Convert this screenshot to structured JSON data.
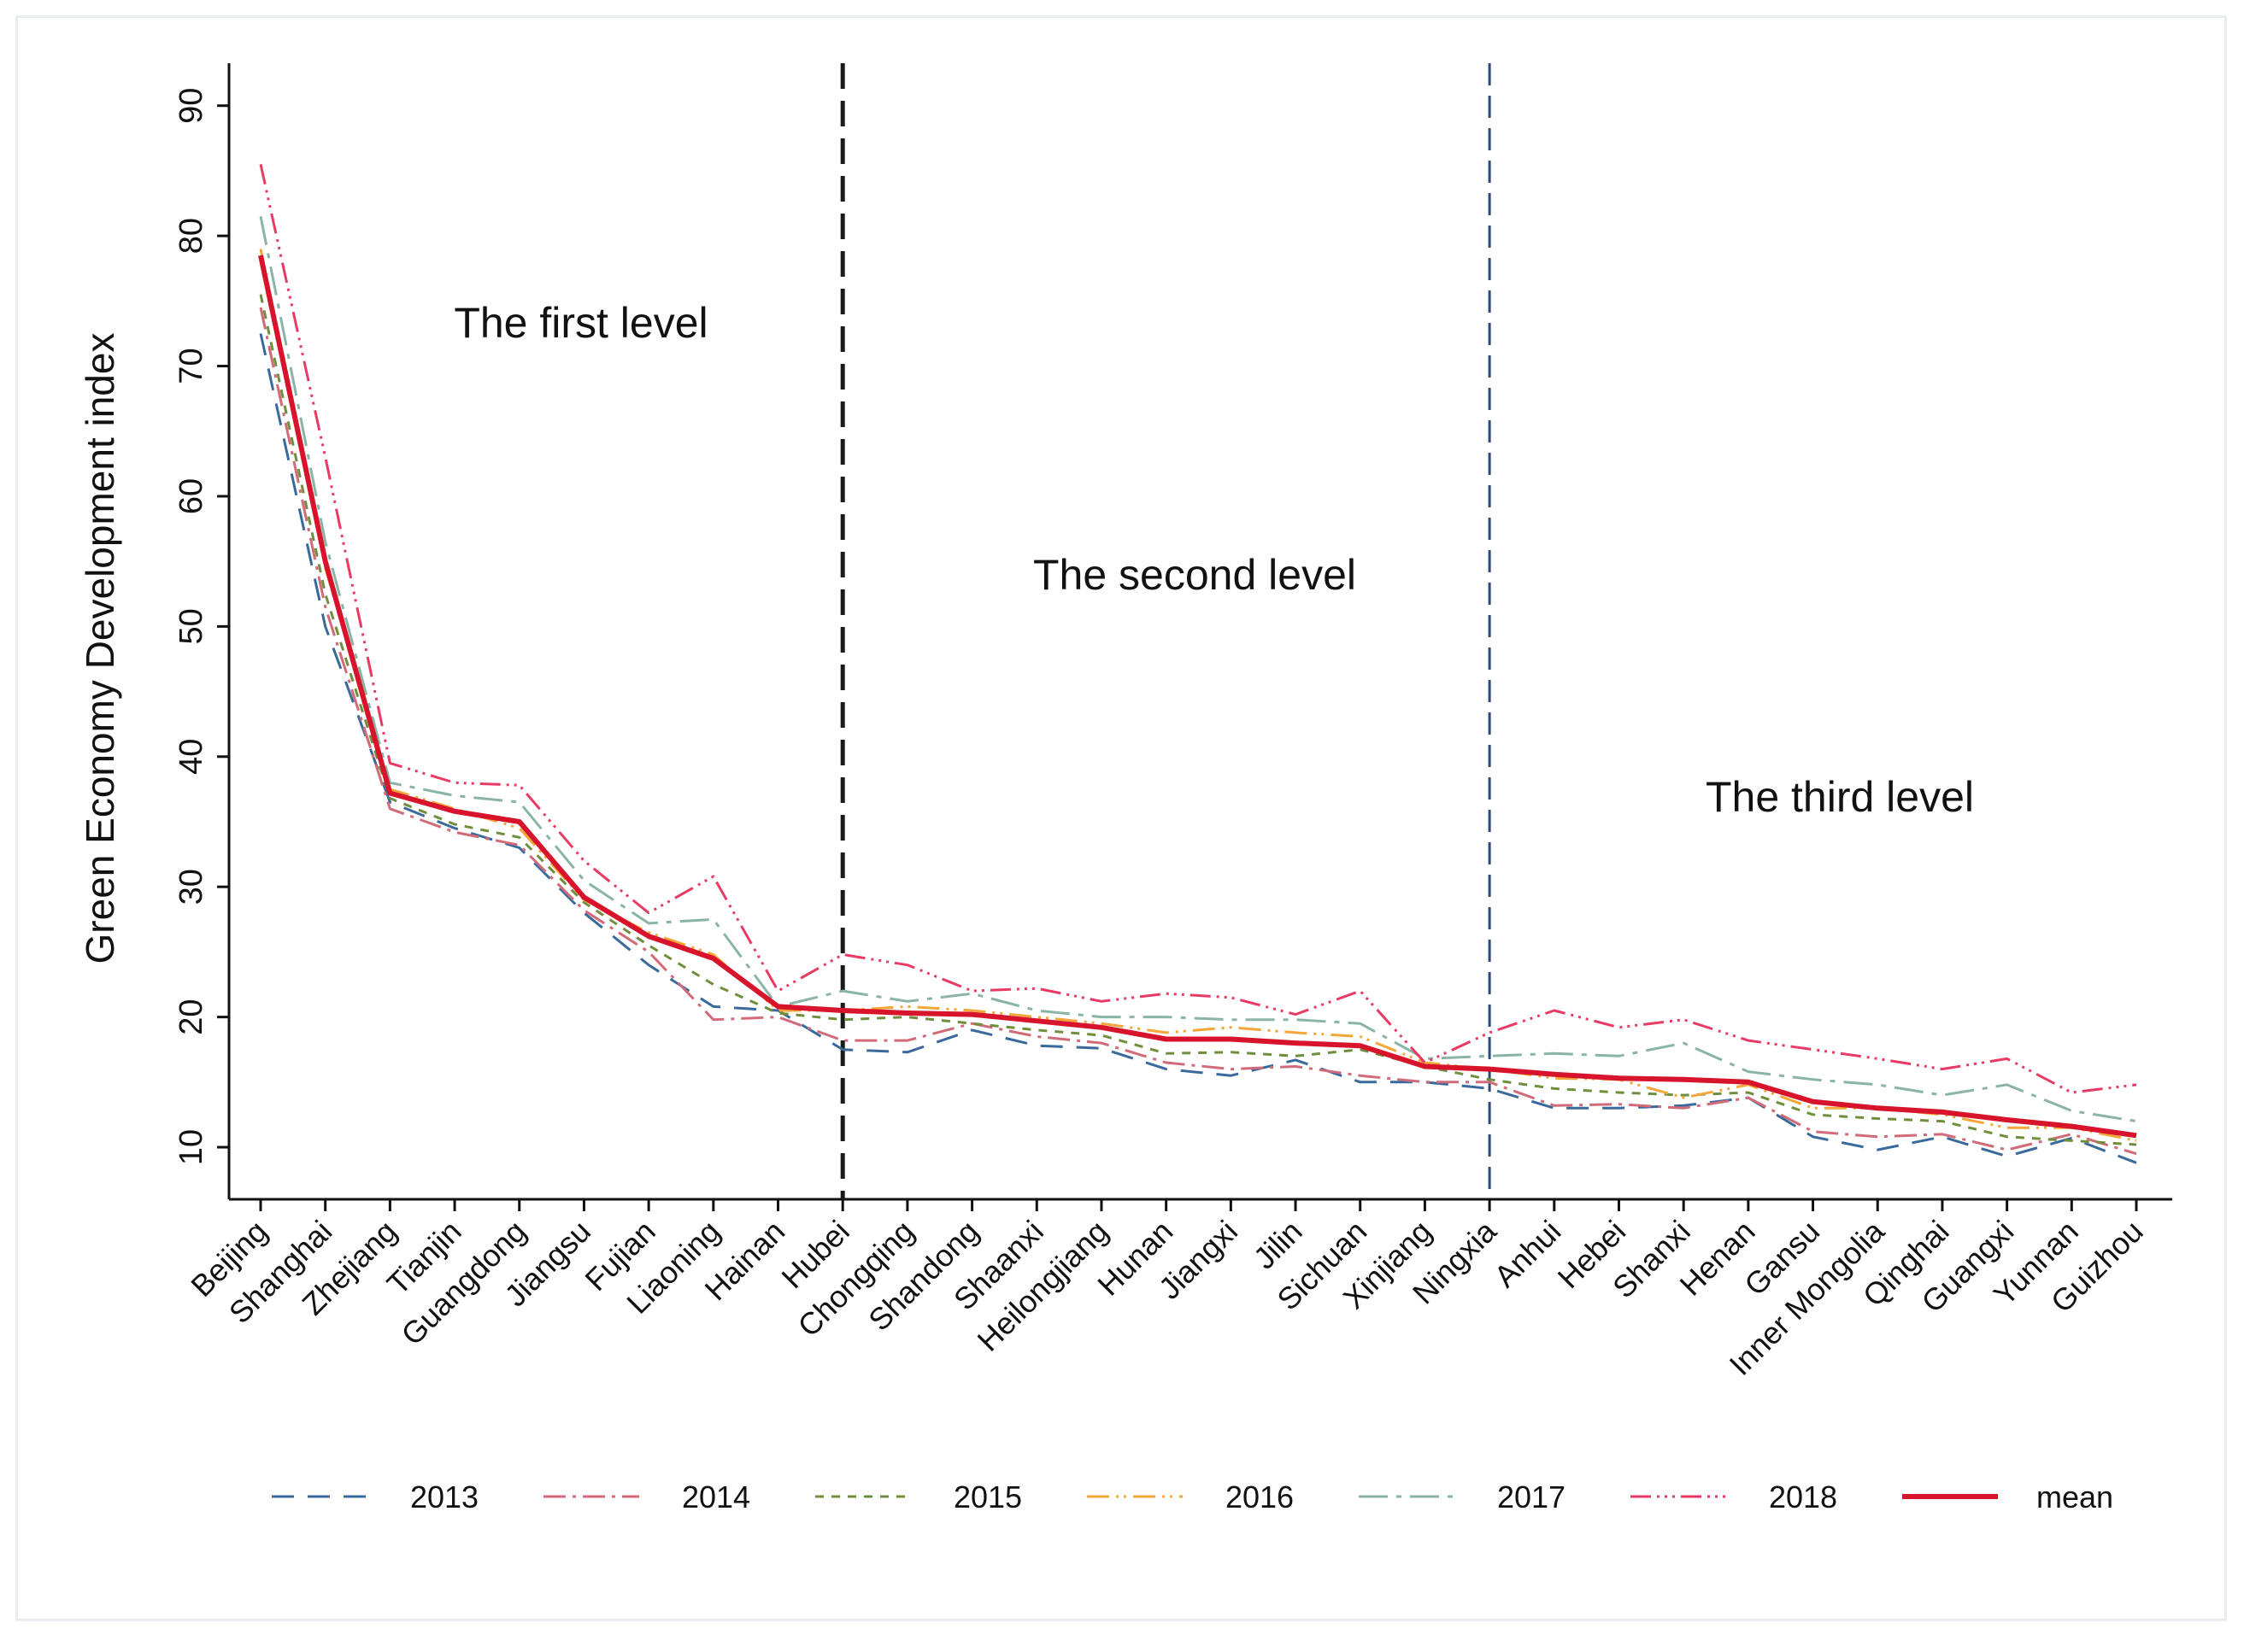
{
  "chart_data": {
    "type": "line",
    "title": "",
    "xlabel": "",
    "ylabel": "Green Economy Development index",
    "ylim": [
      6,
      93
    ],
    "yticks": [
      10,
      20,
      30,
      40,
      50,
      60,
      70,
      80,
      90
    ],
    "grid": false,
    "legend_position": "bottom",
    "categories": [
      "Beijing",
      "Shanghai",
      "Zhejiang",
      "Tianjin",
      "Guangdong",
      "Jiangsu",
      "Fujian",
      "Liaoning",
      "Hainan",
      "Hubei",
      "Chongqing",
      "Shandong",
      "Shaanxi",
      "Heilongjiang",
      "Hunan",
      "Jiangxi",
      "Jilin",
      "Sichuan",
      "Xinjiang",
      "Ningxia",
      "Anhui",
      "Hebei",
      "Shanxi",
      "Henan",
      "Gansu",
      "Inner Mongolia",
      "Qinghai",
      "Guangxi",
      "Yunnan",
      "Guizhou"
    ],
    "series": [
      {
        "name": "2013",
        "color": "#3a6a9c",
        "dash": "26,16",
        "width": 3,
        "values": [
          72.5,
          50.0,
          36.5,
          34.5,
          33.0,
          28.0,
          24.0,
          20.8,
          20.5,
          17.5,
          17.3,
          19.0,
          17.8,
          17.6,
          16.0,
          15.5,
          16.7,
          15.0,
          15.0,
          14.5,
          13.0,
          13.0,
          13.2,
          13.8,
          10.8,
          9.8,
          10.8,
          9.3,
          10.7,
          8.8
        ]
      },
      {
        "name": "2014",
        "color": "#d16b79",
        "dash": "26,8,4,8",
        "width": 3,
        "values": [
          74.5,
          51.5,
          36.0,
          34.2,
          33.2,
          28.2,
          25.0,
          19.8,
          20.0,
          18.2,
          18.2,
          19.5,
          18.5,
          18.0,
          16.5,
          16.0,
          16.2,
          15.5,
          15.0,
          15.0,
          13.2,
          13.3,
          13.0,
          13.8,
          11.2,
          10.8,
          11.0,
          9.8,
          11.0,
          9.5
        ]
      },
      {
        "name": "2015",
        "color": "#6f8f3c",
        "dash": "10,9",
        "width": 3,
        "values": [
          75.5,
          52.5,
          36.8,
          34.8,
          33.8,
          28.8,
          25.5,
          22.5,
          20.3,
          19.8,
          20.0,
          19.5,
          19.0,
          18.6,
          17.2,
          17.3,
          17.0,
          17.5,
          16.2,
          15.2,
          14.5,
          14.2,
          14.0,
          14.2,
          12.5,
          12.2,
          12.0,
          10.8,
          10.5,
          10.2
        ]
      },
      {
        "name": "2016",
        "color": "#f4a739",
        "dash": "26,8,3,6,3,8",
        "width": 3,
        "values": [
          79.0,
          54.5,
          37.5,
          36.0,
          34.5,
          29.0,
          26.5,
          24.8,
          20.5,
          20.5,
          20.8,
          20.5,
          20.0,
          19.5,
          18.8,
          19.2,
          18.8,
          18.5,
          16.5,
          16.0,
          15.3,
          15.2,
          13.8,
          14.8,
          13.0,
          13.0,
          12.5,
          11.5,
          11.5,
          10.5
        ]
      },
      {
        "name": "2017",
        "color": "#8ab5a5",
        "dash": "34,10,6,10",
        "width": 3,
        "values": [
          81.5,
          56.5,
          38.0,
          37.0,
          36.5,
          30.5,
          27.2,
          27.5,
          20.8,
          22.0,
          21.2,
          21.8,
          20.5,
          20.0,
          20.0,
          19.8,
          19.8,
          19.5,
          16.8,
          17.0,
          17.2,
          17.0,
          18.0,
          15.8,
          15.2,
          14.8,
          14.0,
          14.8,
          12.8,
          12.0
        ]
      },
      {
        "name": "2018",
        "color": "#e83a64",
        "dash": "24,7,3,6,3,6,3,7",
        "width": 3,
        "values": [
          85.5,
          63.0,
          39.5,
          38.0,
          37.8,
          32.0,
          28.0,
          30.8,
          22.0,
          24.8,
          24.0,
          22.0,
          22.2,
          21.2,
          21.8,
          21.5,
          20.2,
          22.0,
          16.5,
          18.8,
          20.5,
          19.2,
          19.8,
          18.2,
          17.5,
          16.8,
          16.0,
          16.8,
          14.2,
          14.8
        ]
      },
      {
        "name": "mean",
        "color": "#d7142b",
        "dash": "",
        "width": 6,
        "values": [
          78.5,
          55.0,
          37.2,
          35.8,
          35.0,
          29.2,
          26.2,
          24.5,
          20.8,
          20.5,
          20.3,
          20.2,
          19.7,
          19.2,
          18.3,
          18.3,
          18.0,
          17.8,
          16.2,
          16.0,
          15.6,
          15.3,
          15.2,
          15.0,
          13.5,
          13.0,
          12.7,
          12.1,
          11.6,
          10.9
        ]
      }
    ],
    "dividers": [
      {
        "after_category": "Hubei",
        "color": "#1a1a1a",
        "dash": "30,14",
        "width": 5
      },
      {
        "after_category": "Ningxia",
        "color": "#2a4a80",
        "dash": "26,12",
        "width": 3
      }
    ],
    "annotations": [
      {
        "text": "The first level"
      },
      {
        "text": "The second level"
      },
      {
        "text": "The third level"
      }
    ]
  }
}
